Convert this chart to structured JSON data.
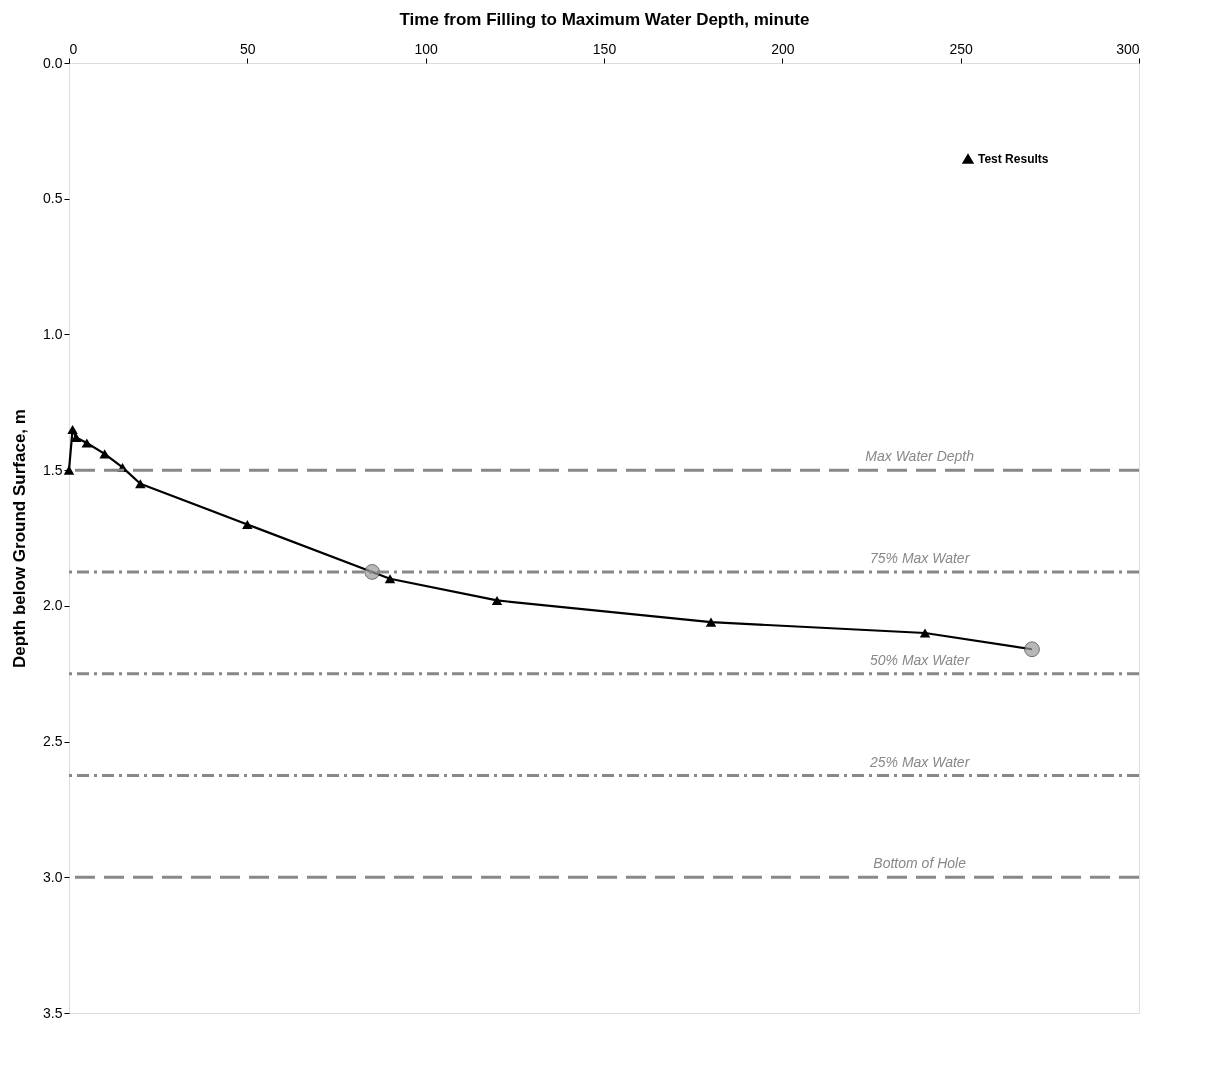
{
  "chart_data": {
    "type": "line",
    "xlabel": "Time from Filling to Maximum Water Depth, minute",
    "ylabel": "Depth below Ground Surface, m",
    "xlim": [
      0,
      300
    ],
    "xticks": [
      0,
      50,
      100,
      150,
      200,
      250,
      300
    ],
    "ylim": [
      3.5,
      0
    ],
    "yticks": [
      {
        "value": 0,
        "label": "0.0"
      },
      {
        "value": 0.5,
        "label": "0.5"
      },
      {
        "value": 1,
        "label": "1.0"
      },
      {
        "value": 1.5,
        "label": "1.5"
      },
      {
        "value": 2,
        "label": "2.0"
      },
      {
        "value": 2.5,
        "label": "2.5"
      },
      {
        "value": 3,
        "label": "3.0"
      },
      {
        "value": 3.5,
        "label": "3.5"
      }
    ],
    "grid": false,
    "legend": "top right",
    "series": [
      {
        "name": "Test Results",
        "type": "line",
        "color": "#000000",
        "marker": "triangle",
        "x": [
          0,
          1,
          2,
          5,
          10,
          15,
          20,
          50,
          90,
          120,
          180,
          240
        ],
        "values": [
          1.5,
          1.35,
          1.38,
          1.4,
          1.44,
          1.49,
          1.55,
          1.7,
          1.9,
          1.98,
          2.06,
          2.1
        ]
      },
      {
        "type": "line",
        "color": "#000000",
        "marker": "none",
        "x": [
          240,
          270
        ],
        "values": [
          2.1,
          2.16
        ]
      },
      {
        "type": "scatter",
        "color": "#999999",
        "marker": "circle",
        "x": [
          85,
          270
        ],
        "values": [
          1.875,
          2.16
        ]
      }
    ],
    "ref_lines": [
      {
        "axis": "y",
        "value": 1.5,
        "label": "Max Water Depth",
        "color": "#888888",
        "line_style": "dashed"
      },
      {
        "axis": "y",
        "value": 1.875,
        "label": "75% Max Water",
        "color": "#888888",
        "line_style": "dotted"
      },
      {
        "axis": "y",
        "value": 2.25,
        "label": "50% Max Water",
        "color": "#888888",
        "line_style": "dotted"
      },
      {
        "axis": "y",
        "value": 2.625,
        "label": "25% Max Water",
        "color": "#888888",
        "line_style": "dotted"
      },
      {
        "axis": "y",
        "value": 3.0,
        "label": "Bottom of Hole",
        "color": "#888888",
        "line_style": "dashed"
      }
    ]
  }
}
